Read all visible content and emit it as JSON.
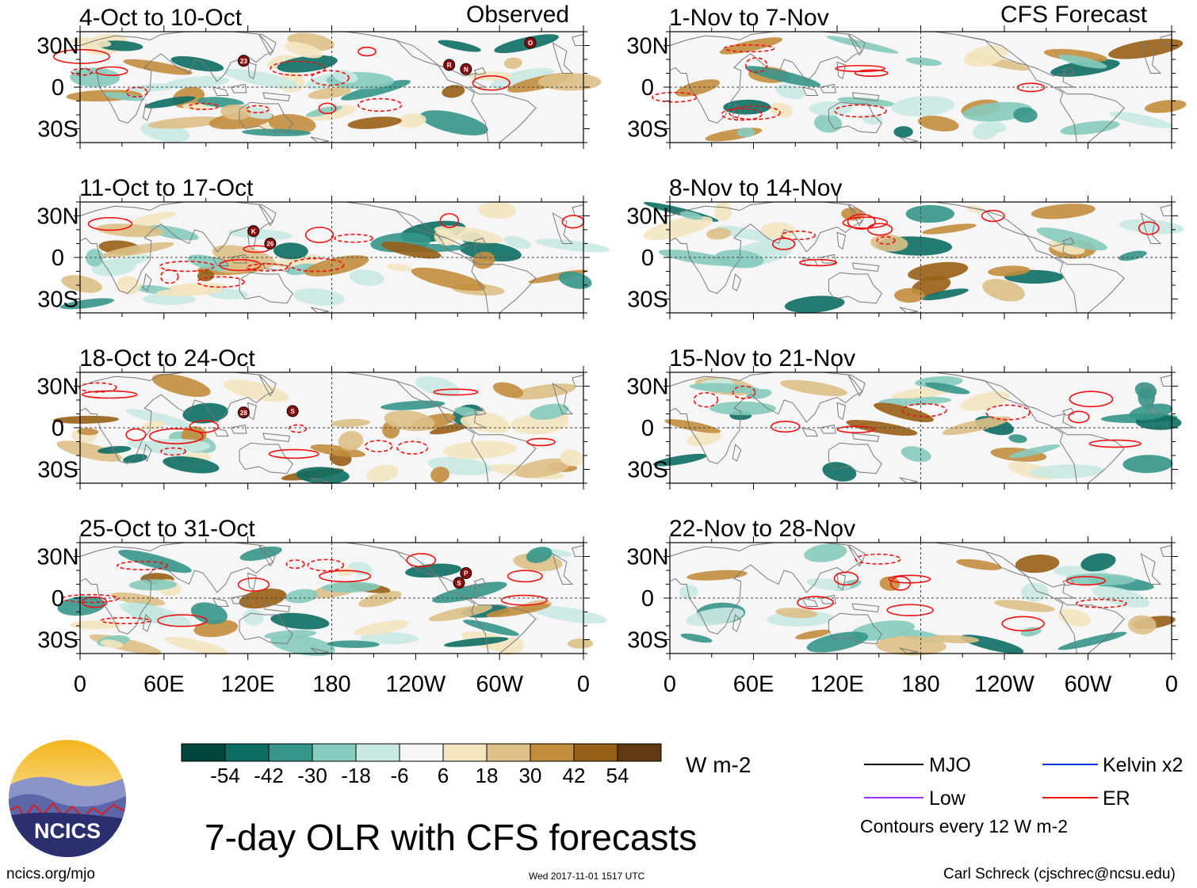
{
  "title": "7-day OLR with CFS forecasts",
  "units": "W m-2",
  "footer": {
    "url": "ncics.org/mjo",
    "timestamp": "Wed 2017-11-01 1517 UTC",
    "credit": "Carl Schreck (cjschrec@ncsu.edu)"
  },
  "logo": {
    "text": "NCICS"
  },
  "columns": {
    "left_label": "Observed",
    "right_label": "CFS Forecast"
  },
  "lat_labels": [
    "30N",
    "0",
    "30S"
  ],
  "lon_labels": [
    "0",
    "60E",
    "120E",
    "180",
    "120W",
    "60W",
    "0"
  ],
  "panels_left": [
    {
      "title": "4-Oct to 10-Oct"
    },
    {
      "title": "11-Oct to 17-Oct"
    },
    {
      "title": "18-Oct to 24-Oct"
    },
    {
      "title": "25-Oct to 31-Oct"
    }
  ],
  "panels_right": [
    {
      "title": "1-Nov to 7-Nov"
    },
    {
      "title": "8-Nov to 14-Nov"
    },
    {
      "title": "15-Nov to 21-Nov"
    },
    {
      "title": "22-Nov to 28-Nov"
    }
  ],
  "colorbar": {
    "ticks": [
      "-54",
      "-42",
      "-30",
      "-18",
      "-6",
      "6",
      "18",
      "30",
      "42",
      "54"
    ],
    "colors": [
      "#01453c",
      "#0c6e63",
      "#36968a",
      "#86cbbe",
      "#c9e9e2",
      "#f6f6f6",
      "#f4e6c0",
      "#ddc087",
      "#c38d3e",
      "#985f16",
      "#5f3a10"
    ]
  },
  "legend": {
    "items": [
      {
        "label": "MJO",
        "color": "#000000"
      },
      {
        "label": "Kelvin x2",
        "color": "#1133dd"
      },
      {
        "label": "Low",
        "color": "#9933ff"
      },
      {
        "label": "ER",
        "color": "#ee1111"
      }
    ],
    "note": "Contours every 12 W m-2"
  },
  "storms": [
    {
      "panel": "L0",
      "lon": 117,
      "lat": 19,
      "label": "23"
    },
    {
      "panel": "L0",
      "lon": 264,
      "lat": 16,
      "label": "R"
    },
    {
      "panel": "L0",
      "lon": 276,
      "lat": 13,
      "label": "N"
    },
    {
      "panel": "L0",
      "lon": 322,
      "lat": 32,
      "label": "O"
    },
    {
      "panel": "L1",
      "lon": 124,
      "lat": 19,
      "label": "K"
    },
    {
      "panel": "L1",
      "lon": 136,
      "lat": 10,
      "label": "26"
    },
    {
      "panel": "L2",
      "lon": 117,
      "lat": 11,
      "label": "28"
    },
    {
      "panel": "L2",
      "lon": 152,
      "lat": 12,
      "label": "S"
    },
    {
      "panel": "L3",
      "lon": 276,
      "lat": 18,
      "label": "P"
    },
    {
      "panel": "L3",
      "lon": 271,
      "lat": 11,
      "label": "S"
    }
  ]
}
